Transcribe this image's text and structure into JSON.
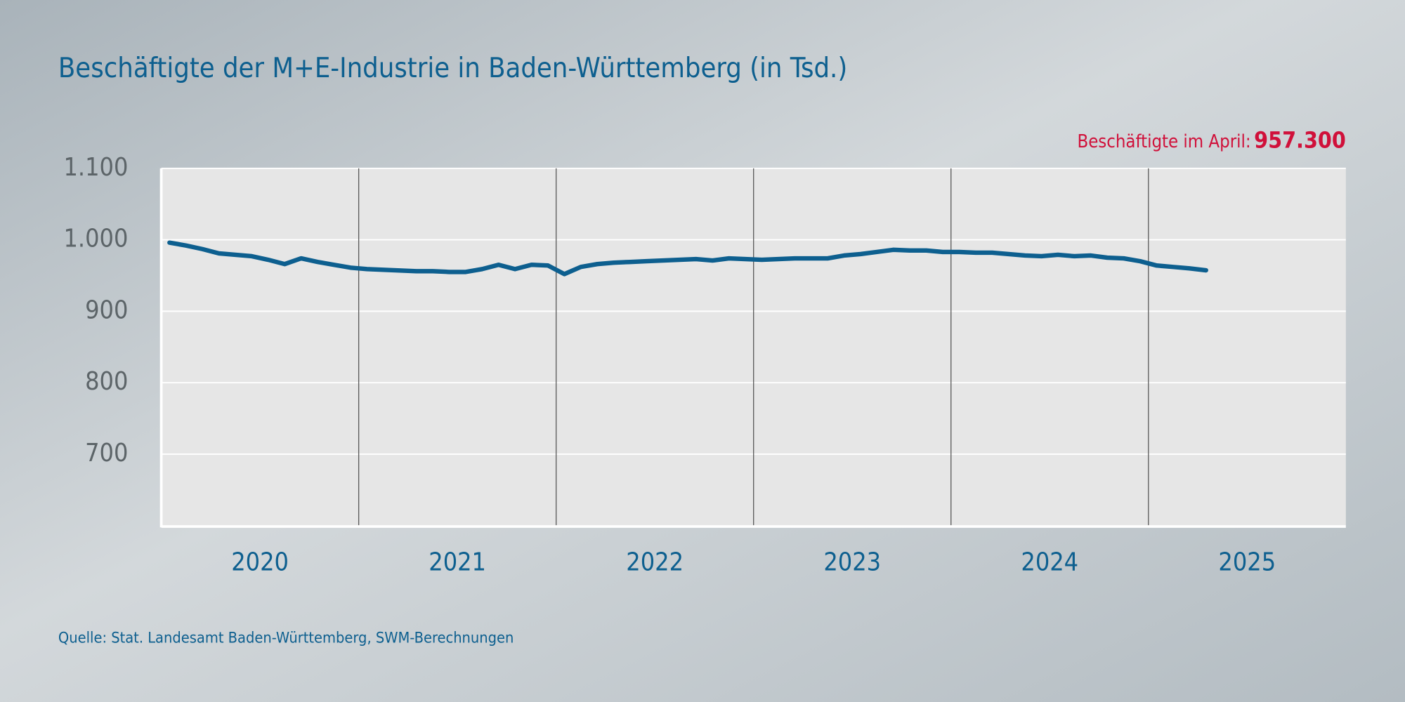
{
  "chart_data": {
    "type": "line",
    "title": "Beschäftigte der M+E-Industrie in Baden-Württemberg (in Tsd.)",
    "annotation": {
      "label": "Beschäftigte im April:",
      "value_label": "957.300"
    },
    "source": "Quelle: Stat. Landesamt Baden-Württemberg, SWM-Berechnungen",
    "x_labels": [
      "2020",
      "2021",
      "2022",
      "2023",
      "2024",
      "2025"
    ],
    "series": [
      {
        "name": "Beschäftigte",
        "color": "#0d5f8f",
        "values": [
          996,
          992,
          987,
          981,
          979,
          977,
          972,
          966,
          974,
          969,
          965,
          961,
          959,
          958,
          957,
          956,
          956,
          955,
          955,
          959,
          965,
          959,
          965,
          964,
          952,
          962,
          966,
          968,
          969,
          970,
          971,
          972,
          973,
          971,
          974,
          973,
          972,
          973,
          974,
          974,
          974,
          978,
          980,
          983,
          986,
          985,
          985,
          983,
          983,
          982,
          982,
          980,
          978,
          977,
          979,
          977,
          978,
          975,
          974,
          970,
          964,
          962,
          960,
          957.3
        ]
      }
    ],
    "ylim": [
      600,
      1100
    ],
    "yticks": [
      700,
      800,
      900,
      {
        "value": 1000,
        "label": "1.000"
      },
      {
        "value": 1100,
        "label": "1.100"
      }
    ],
    "grid": true
  }
}
